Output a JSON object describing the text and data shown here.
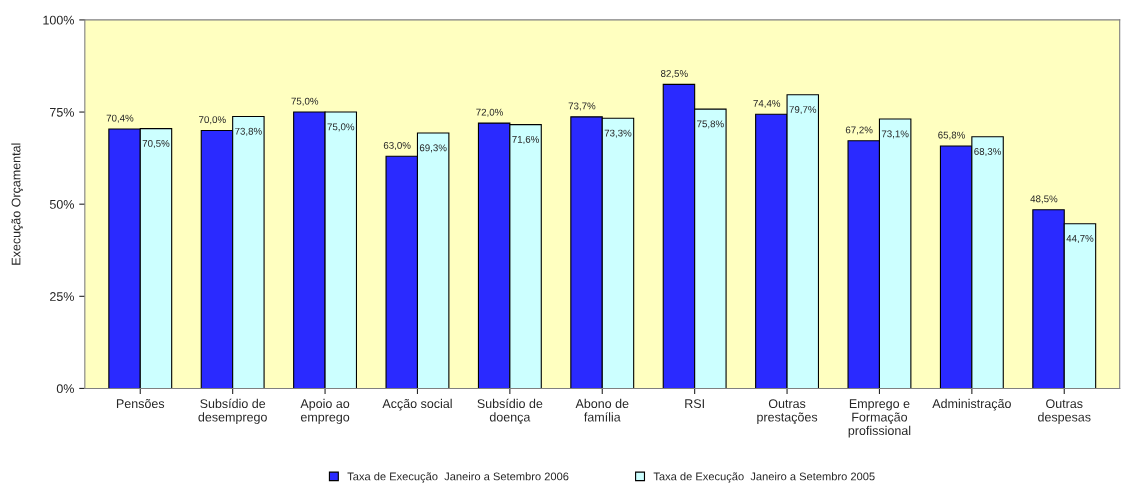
{
  "chart_data": {
    "type": "bar",
    "ylabel": "Execução Orçamental",
    "categories": [
      "Pensões",
      "Subsídio de\ndesemprego",
      "Apoio ao\nemprego",
      "Acção social",
      "Subsídio de\ndoença",
      "Abono de\nfamília",
      "RSI",
      "Outras\nprestações",
      "Emprego e\nFormação\nprofissional",
      "Administração",
      "Outras\ndespesas"
    ],
    "series": [
      {
        "name": "Taxa de Execução  Janeiro a Setembro 2006",
        "color": "#2a2aff",
        "values": [
          70.4,
          70.0,
          75.0,
          63.0,
          72.0,
          73.7,
          82.5,
          74.4,
          67.2,
          65.8,
          48.5
        ],
        "value_labels": [
          "70,4%",
          "70,0%",
          "75,0%",
          "63,0%",
          "72,0%",
          "73,7%",
          "82,5%",
          "74,4%",
          "67,2%",
          "65,8%",
          "48,5%"
        ]
      },
      {
        "name": "Taxa de Execução  Janeiro a Setembro 2005",
        "color": "#ccffff",
        "values": [
          70.5,
          73.8,
          75.0,
          69.3,
          71.6,
          73.3,
          75.8,
          79.7,
          73.1,
          68.3,
          44.7
        ],
        "value_labels": [
          "70,5%",
          "73,8%",
          "75,0%",
          "69,3%",
          "71,6%",
          "73,3%",
          "75,8%",
          "79,7%",
          "73,1%",
          "68,3%",
          "44,7%"
        ]
      }
    ],
    "ylim": [
      0,
      100
    ],
    "yticks": [
      {
        "value": 0,
        "label": "0%"
      },
      {
        "value": 25,
        "label": "25%"
      },
      {
        "value": 50,
        "label": "50%"
      },
      {
        "value": 75,
        "label": "75%"
      },
      {
        "value": 100,
        "label": "100%"
      }
    ],
    "grid": false,
    "legend": "bottom"
  }
}
